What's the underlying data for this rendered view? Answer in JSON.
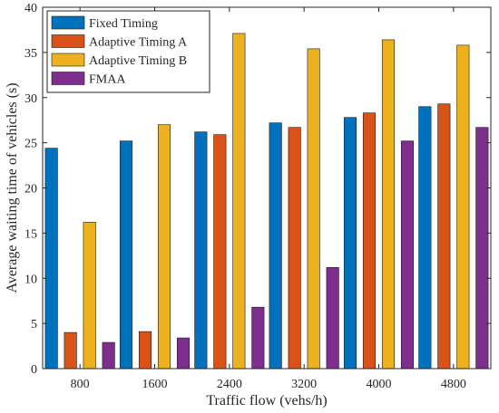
{
  "chart_data": {
    "type": "bar",
    "xlabel": "Traffic flow (vehs/h)",
    "ylabel": "Average waiting time of vehicles (s)",
    "categories": [
      "800",
      "1600",
      "2400",
      "3200",
      "4000",
      "4800"
    ],
    "ylim": [
      0,
      40
    ],
    "yticks": [
      0,
      5,
      10,
      15,
      20,
      25,
      30,
      35,
      40
    ],
    "grid": false,
    "legend_position": "top-left",
    "series": [
      {
        "name": "Fixed Timing",
        "color": "#0072BD",
        "values": [
          24.4,
          25.2,
          26.2,
          27.2,
          27.8,
          29.0
        ]
      },
      {
        "name": "Adaptive Timing A",
        "color": "#D95319",
        "values": [
          4.0,
          4.1,
          25.9,
          26.7,
          28.3,
          29.3
        ]
      },
      {
        "name": "Adaptive Timing B",
        "color": "#EDB120",
        "values": [
          16.2,
          27.0,
          37.1,
          35.4,
          36.4,
          35.8
        ]
      },
      {
        "name": "FMAA",
        "color": "#7E2F8E",
        "values": [
          2.9,
          3.4,
          6.8,
          11.2,
          25.2,
          26.7
        ]
      }
    ]
  }
}
